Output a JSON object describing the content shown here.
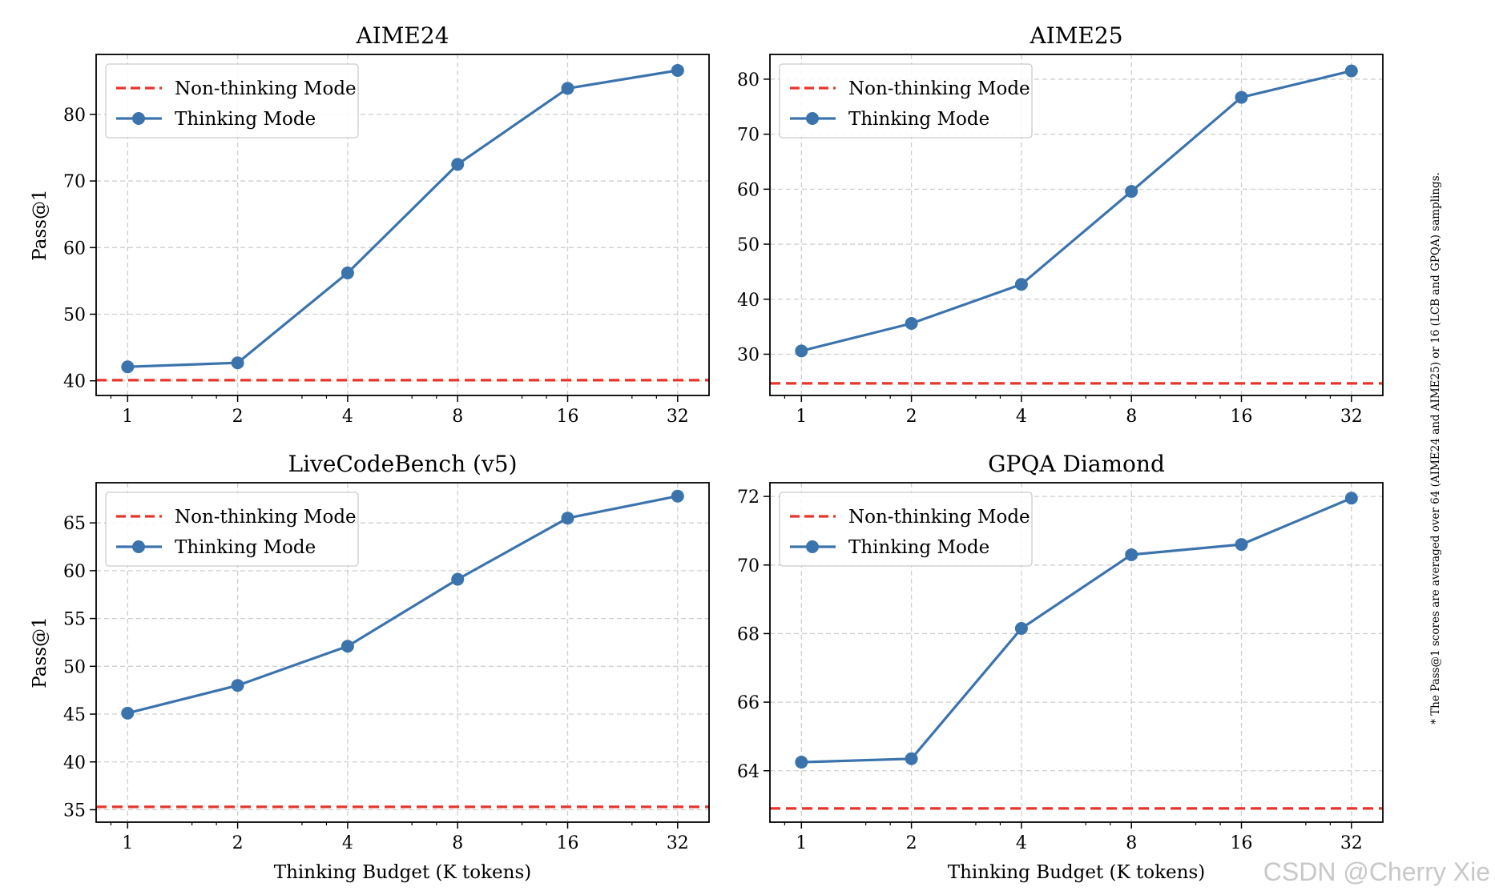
{
  "figure": {
    "footnote": "* The Pass@1 scores are averaged over 64 (AIME24 and AIME25) or 16 (LCB and GPQA) samplings.",
    "watermark": "CSDN @Cherry Xie"
  },
  "colors": {
    "thinking": "#3b73ad",
    "non_thinking": "#e8352a",
    "grid": "#cfcfcf",
    "axis": "#000000"
  },
  "legend": {
    "non_thinking_label": "Non-thinking Mode",
    "thinking_label": "Thinking Mode",
    "placement": "top-left"
  },
  "chart_data": [
    {
      "type": "line",
      "title": "AIME24",
      "xlabel": "",
      "ylabel": "Pass@1",
      "xscale": "log2",
      "x": [
        1,
        2,
        4,
        8,
        16,
        32
      ],
      "x_tick_labels": [
        "1",
        "2",
        "4",
        "8",
        "16",
        "32"
      ],
      "xlim": [
        0.82,
        39
      ],
      "ylim": [
        37.8,
        89
      ],
      "y_ticks": [
        40,
        50,
        60,
        70,
        80
      ],
      "grid": true,
      "series": [
        {
          "name": "Thinking Mode",
          "style": "line-marker",
          "values": [
            42.1,
            42.7,
            56.2,
            72.5,
            83.9,
            86.6
          ]
        },
        {
          "name": "Non-thinking Mode",
          "style": "dashed-hline",
          "value": 40.1
        }
      ]
    },
    {
      "type": "line",
      "title": "AIME25",
      "xlabel": "",
      "ylabel": "",
      "xscale": "log2",
      "x": [
        1,
        2,
        4,
        8,
        16,
        32
      ],
      "x_tick_labels": [
        "1",
        "2",
        "4",
        "8",
        "16",
        "32"
      ],
      "xlim": [
        0.82,
        39
      ],
      "ylim": [
        22.5,
        84.5
      ],
      "y_ticks": [
        30,
        40,
        50,
        60,
        70,
        80
      ],
      "grid": true,
      "series": [
        {
          "name": "Thinking Mode",
          "style": "line-marker",
          "values": [
            30.6,
            35.6,
            42.7,
            59.6,
            76.7,
            81.5
          ]
        },
        {
          "name": "Non-thinking Mode",
          "style": "dashed-hline",
          "value": 24.7
        }
      ]
    },
    {
      "type": "line",
      "title": "LiveCodeBench (v5)",
      "xlabel": "Thinking Budget (K tokens)",
      "ylabel": "Pass@1",
      "xscale": "log2",
      "x": [
        1,
        2,
        4,
        8,
        16,
        32
      ],
      "x_tick_labels": [
        "1",
        "2",
        "4",
        "8",
        "16",
        "32"
      ],
      "xlim": [
        0.82,
        39
      ],
      "ylim": [
        33.7,
        69.2
      ],
      "y_ticks": [
        35,
        40,
        45,
        50,
        55,
        60,
        65
      ],
      "grid": true,
      "series": [
        {
          "name": "Thinking Mode",
          "style": "line-marker",
          "values": [
            45.1,
            48.0,
            52.1,
            59.1,
            65.5,
            67.8
          ]
        },
        {
          "name": "Non-thinking Mode",
          "style": "dashed-hline",
          "value": 35.3
        }
      ]
    },
    {
      "type": "line",
      "title": "GPQA Diamond",
      "xlabel": "Thinking Budget (K tokens)",
      "ylabel": "",
      "xscale": "log2",
      "x": [
        1,
        2,
        4,
        8,
        16,
        32
      ],
      "x_tick_labels": [
        "1",
        "2",
        "4",
        "8",
        "16",
        "32"
      ],
      "xlim": [
        0.82,
        39
      ],
      "ylim": [
        62.5,
        72.4
      ],
      "y_ticks": [
        64,
        66,
        68,
        70,
        72
      ],
      "grid": true,
      "series": [
        {
          "name": "Thinking Mode",
          "style": "line-marker",
          "values": [
            64.25,
            64.35,
            68.15,
            70.3,
            70.6,
            71.95
          ]
        },
        {
          "name": "Non-thinking Mode",
          "style": "dashed-hline",
          "value": 62.9
        }
      ]
    }
  ]
}
